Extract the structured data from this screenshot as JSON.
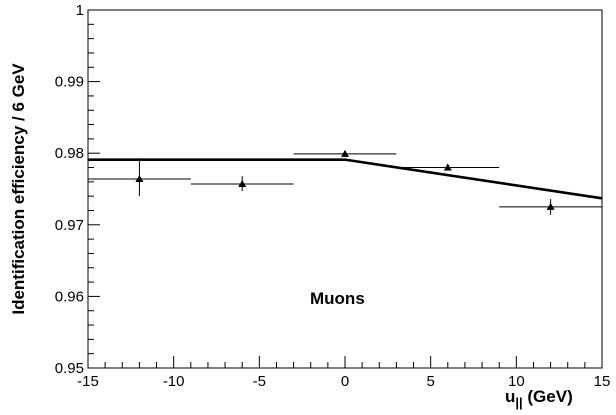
{
  "chart_data": {
    "type": "scatter",
    "title": "",
    "xlabel": "u",
    "xlabel_sub": "||",
    "xlabel_unit": " (GeV)",
    "ylabel": "Identification efficiency / 6 GeV",
    "xlim": [
      -15,
      15
    ],
    "ylim": [
      0.95,
      1.0
    ],
    "grid": false,
    "x_ticks": [
      -15,
      -10,
      -5,
      0,
      5,
      10,
      15
    ],
    "x_tick_labels": [
      "-15",
      "-10",
      "-5",
      "0",
      "5",
      "10",
      "15"
    ],
    "y_ticks": [
      0.95,
      0.96,
      0.97,
      0.98,
      0.99,
      1.0
    ],
    "y_tick_labels": [
      "0.95",
      "0.96",
      "0.97",
      "0.98",
      "0.99",
      "1"
    ],
    "points": [
      {
        "x": -12,
        "y": 0.9764,
        "xerr": 3,
        "yerr_low": 0.0024,
        "yerr_high": 0.0029
      },
      {
        "x": -6,
        "y": 0.9757,
        "xerr": 3,
        "yerr_low": 0.001,
        "yerr_high": 0.0011
      },
      {
        "x": 0,
        "y": 0.9799,
        "xerr": 3,
        "yerr_low": 0.0004,
        "yerr_high": 0.0005
      },
      {
        "x": 6,
        "y": 0.978,
        "xerr": 3,
        "yerr_low": 0.0004,
        "yerr_high": 0.0005
      },
      {
        "x": 12,
        "y": 0.9725,
        "xerr": 3,
        "yerr_low": 0.0011,
        "yerr_high": 0.0011
      }
    ],
    "fit_line": {
      "x": [
        -15,
        0,
        15
      ],
      "y": [
        0.9791,
        0.9791,
        0.9737
      ]
    },
    "annotation": "Muons"
  }
}
